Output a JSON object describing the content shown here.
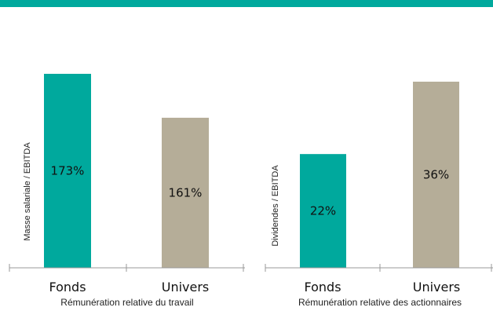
{
  "colors": {
    "band": "#00a99d",
    "fonds": "#00a99d",
    "univers": "#b5ad98"
  },
  "chart_data": [
    {
      "type": "bar",
      "ylabel": "Masse salariale / EBITDA",
      "xlabel": "Rémunération relative du travail",
      "categories": [
        "Fonds",
        "Univers"
      ],
      "values": [
        173,
        161
      ],
      "value_labels": [
        "173%",
        "161%"
      ],
      "ylim": [
        120,
        180
      ],
      "grid": false
    },
    {
      "type": "bar",
      "ylabel": "Dividendes / EBITDA",
      "xlabel": "Rémunération relative des actionnaires",
      "categories": [
        "Fonds",
        "Univers"
      ],
      "values": [
        22,
        36
      ],
      "value_labels": [
        "22%",
        "36%"
      ],
      "ylim": [
        0,
        40
      ],
      "grid": false
    }
  ]
}
